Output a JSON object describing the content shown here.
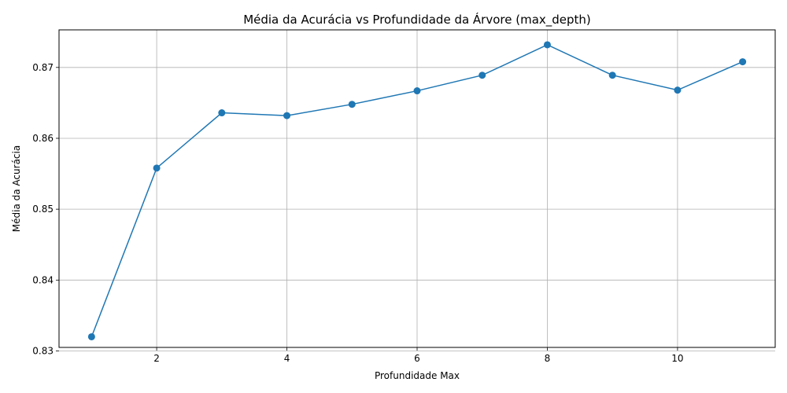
{
  "chart_data": {
    "type": "line",
    "title": "Média da Acurácia vs Profundidade da Árvore (max_depth)",
    "xlabel": "Profundidade Max",
    "ylabel": "Média da Acurácia",
    "xlim": [
      0.5,
      11.5
    ],
    "ylim": [
      0.8305,
      0.8753
    ],
    "xticks": [
      2,
      4,
      6,
      8,
      10
    ],
    "yticks": [
      0.83,
      0.84,
      0.85,
      0.86,
      0.87
    ],
    "xtick_labels": [
      "2",
      "4",
      "6",
      "8",
      "10"
    ],
    "ytick_labels": [
      "0.83",
      "0.84",
      "0.85",
      "0.86",
      "0.87"
    ],
    "grid": true,
    "color": "#1f77b4",
    "series": [
      {
        "x": [
          1,
          2,
          3,
          4,
          5,
          6,
          7,
          8,
          9,
          10,
          11
        ],
        "y": [
          0.832,
          0.8558,
          0.8636,
          0.8632,
          0.8648,
          0.8667,
          0.8689,
          0.8732,
          0.8689,
          0.8668,
          0.8708
        ]
      }
    ]
  }
}
